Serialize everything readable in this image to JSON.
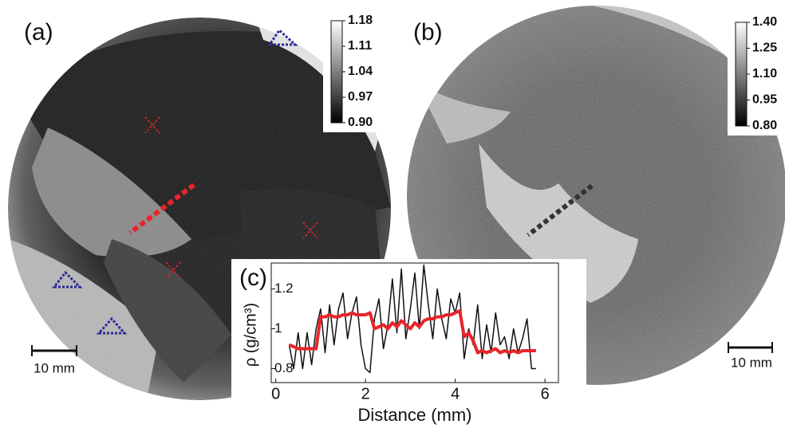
{
  "panels": [
    {
      "label": "(a)",
      "scale_bar": "10 mm",
      "colorbar": {
        "clim": [
          0.9,
          1.18
        ],
        "ticks": [
          1.18,
          1.11,
          1.04,
          0.97,
          {
            "value": 0.9,
            "label": "0.90"
          }
        ]
      }
    },
    {
      "label": "(b)",
      "scale_bar": "10 mm",
      "colorbar": {
        "clim": [
          0.8,
          1.4
        ],
        "ticks": [
          {
            "value": 1.4,
            "label": "1.40"
          },
          1.25,
          {
            "value": 1.1,
            "label": "1.10"
          },
          0.95,
          {
            "value": 0.8,
            "label": "0.80"
          }
        ]
      }
    }
  ],
  "chart_data": {
    "type": "line",
    "title": "(c)",
    "x_label": "Distance (mm)",
    "y_label": "ρ (g/cm³)",
    "xlim": [
      -0.1,
      6.3
    ],
    "ylim": [
      0.73,
      1.33
    ],
    "xticks": [
      0,
      2,
      4,
      6
    ],
    "yticks": [
      0.8,
      1,
      1.2
    ],
    "x": [
      0.3,
      0.4,
      0.5,
      0.6,
      0.7,
      0.8,
      0.9,
      1.0,
      1.1,
      1.2,
      1.3,
      1.4,
      1.5,
      1.6,
      1.7,
      1.8,
      1.9,
      2.0,
      2.1,
      2.2,
      2.3,
      2.4,
      2.5,
      2.6,
      2.7,
      2.8,
      2.9,
      3.0,
      3.1,
      3.2,
      3.3,
      3.4,
      3.5,
      3.6,
      3.7,
      3.8,
      3.9,
      4.0,
      4.1,
      4.2,
      4.3,
      4.4,
      4.5,
      4.6,
      4.7,
      4.8,
      4.9,
      5.0,
      5.1,
      5.2,
      5.3,
      5.4,
      5.5,
      5.6,
      5.7,
      5.8
    ],
    "series": [
      {
        "color": "#111111",
        "values": [
          0.92,
          0.8,
          0.98,
          0.8,
          0.98,
          0.82,
          1.0,
          1.1,
          0.88,
          1.12,
          0.92,
          1.1,
          1.18,
          0.95,
          1.08,
          1.16,
          0.92,
          0.8,
          0.78,
          1.05,
          1.15,
          0.9,
          1.02,
          1.25,
          0.98,
          1.3,
          0.95,
          1.1,
          1.28,
          1.0,
          1.32,
          1.12,
          0.95,
          1.2,
          1.05,
          0.95,
          1.15,
          1.08,
          1.18,
          0.85,
          1.0,
          0.92,
          1.12,
          0.85,
          1.02,
          0.88,
          1.08,
          0.92,
          0.96,
          0.85,
          1.0,
          0.88,
          0.95,
          1.05,
          0.8,
          0.8
        ]
      },
      {
        "color": "#e8252a",
        "values": [
          0.92,
          0.91,
          0.9,
          0.9,
          0.9,
          0.9,
          0.9,
          1.06,
          1.06,
          1.07,
          1.06,
          1.06,
          1.07,
          1.07,
          1.08,
          1.07,
          1.07,
          1.07,
          1.08,
          1.0,
          1.01,
          1.02,
          1.0,
          1.03,
          1.01,
          1.04,
          1.02,
          1.0,
          1.03,
          1.01,
          1.04,
          1.05,
          1.05,
          1.06,
          1.06,
          1.07,
          1.07,
          1.08,
          1.09,
          0.96,
          0.98,
          0.94,
          0.88,
          0.89,
          0.88,
          0.89,
          0.9,
          0.88,
          0.89,
          0.88,
          0.89,
          0.88,
          0.89,
          0.89,
          0.89,
          0.89
        ]
      }
    ]
  }
}
